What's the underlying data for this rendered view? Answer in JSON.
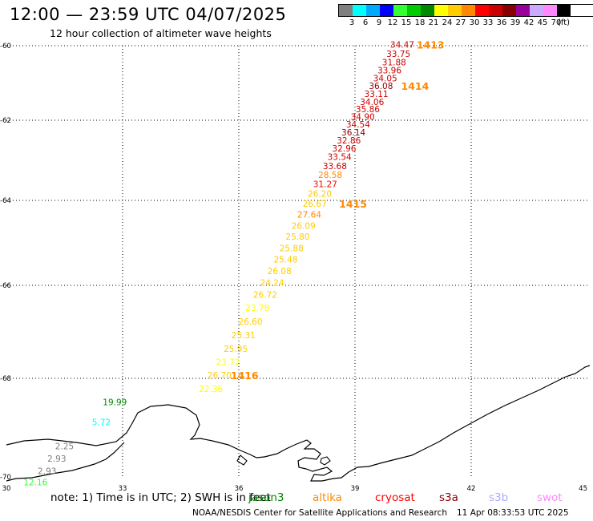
{
  "header": {
    "title": "12:00 — 23:59 UTC 04/07/2025",
    "subtitle": "12 hour collection of altimeter wave heights"
  },
  "legend": {
    "unit": "(ft)",
    "bins": [
      {
        "label": "3",
        "color": "#808080"
      },
      {
        "label": "6",
        "color": "#00ffff"
      },
      {
        "label": "9",
        "color": "#00aaff"
      },
      {
        "label": "12",
        "color": "#0000ff"
      },
      {
        "label": "15",
        "color": "#33ff33"
      },
      {
        "label": "18",
        "color": "#00cc00"
      },
      {
        "label": "21",
        "color": "#008800"
      },
      {
        "label": "24",
        "color": "#ffff00"
      },
      {
        "label": "27",
        "color": "#ffcc00"
      },
      {
        "label": "30",
        "color": "#ff8800"
      },
      {
        "label": "33",
        "color": "#ff0000"
      },
      {
        "label": "36",
        "color": "#cc0000"
      },
      {
        "label": "39",
        "color": "#880000"
      },
      {
        "label": "42",
        "color": "#990099"
      },
      {
        "label": "45",
        "color": "#ccaaff"
      },
      {
        "label": "70",
        "color": "#ff88ff"
      },
      {
        "label": "",
        "color": "#000000"
      }
    ]
  },
  "axes": {
    "lat_ticks": [
      "-60",
      "-62",
      "-64",
      "-66",
      "-68",
      "-70"
    ],
    "lon_ticks": [
      "30",
      "33",
      "36",
      "39",
      "42",
      "45"
    ]
  },
  "observations": [
    {
      "v": "34.47",
      "lon": 40.22,
      "lat": -59.97,
      "c": "#cc0000"
    },
    {
      "v": "33.75",
      "lon": 40.12,
      "lat": -60.21,
      "c": "#cc0000"
    },
    {
      "v": "31.88",
      "lon": 40.01,
      "lat": -60.44,
      "c": "#cc0000"
    },
    {
      "v": "33.96",
      "lon": 39.89,
      "lat": -60.66,
      "c": "#cc0000"
    },
    {
      "v": "34.05",
      "lon": 39.78,
      "lat": -60.87,
      "c": "#cc0000"
    },
    {
      "v": "36.08",
      "lon": 39.67,
      "lat": -61.08,
      "c": "#880000"
    },
    {
      "v": "33.11",
      "lon": 39.55,
      "lat": -61.29,
      "c": "#cc0000"
    },
    {
      "v": "34.06",
      "lon": 39.44,
      "lat": -61.5,
      "c": "#cc0000"
    },
    {
      "v": "35.86",
      "lon": 39.33,
      "lat": -61.7,
      "c": "#cc0000"
    },
    {
      "v": "34.90",
      "lon": 39.2,
      "lat": -61.9,
      "c": "#cc0000"
    },
    {
      "v": "34.54",
      "lon": 39.08,
      "lat": -62.1,
      "c": "#cc0000"
    },
    {
      "v": "36.14",
      "lon": 38.96,
      "lat": -62.3,
      "c": "#880000"
    },
    {
      "v": "32.86",
      "lon": 38.84,
      "lat": -62.5,
      "c": "#cc0000"
    },
    {
      "v": "32.96",
      "lon": 38.72,
      "lat": -62.7,
      "c": "#cc0000"
    },
    {
      "v": "33.54",
      "lon": 38.6,
      "lat": -62.91,
      "c": "#cc0000"
    },
    {
      "v": "33.68",
      "lon": 38.48,
      "lat": -63.14,
      "c": "#cc0000"
    },
    {
      "v": "28.58",
      "lon": 38.36,
      "lat": -63.36,
      "c": "#ff8800"
    },
    {
      "v": "31.27",
      "lon": 38.23,
      "lat": -63.59,
      "c": "#ff0000"
    },
    {
      "v": "26.20",
      "lon": 38.09,
      "lat": -63.83,
      "c": "#ffcc00"
    },
    {
      "v": "26.67",
      "lon": 37.96,
      "lat": -64.08,
      "c": "#ffcc00"
    },
    {
      "v": "27.64",
      "lon": 37.82,
      "lat": -64.33,
      "c": "#ff8800"
    },
    {
      "v": "26.09",
      "lon": 37.67,
      "lat": -64.59,
      "c": "#ffcc00"
    },
    {
      "v": "25.80",
      "lon": 37.52,
      "lat": -64.85,
      "c": "#ffcc00"
    },
    {
      "v": "25.88",
      "lon": 37.36,
      "lat": -65.12,
      "c": "#ffcc00"
    },
    {
      "v": "25.48",
      "lon": 37.21,
      "lat": -65.39,
      "c": "#ffcc00"
    },
    {
      "v": "26.08",
      "lon": 37.05,
      "lat": -65.66,
      "c": "#ffcc00"
    },
    {
      "v": "24.24",
      "lon": 36.86,
      "lat": -65.93,
      "c": "#ffcc00"
    },
    {
      "v": "26.72",
      "lon": 36.68,
      "lat": -66.2,
      "c": "#ffcc00"
    },
    {
      "v": "23.78",
      "lon": 36.48,
      "lat": -66.48,
      "c": "#ffff00"
    },
    {
      "v": "26.60",
      "lon": 36.3,
      "lat": -66.78,
      "c": "#ffcc00"
    },
    {
      "v": "25.31",
      "lon": 36.12,
      "lat": -67.07,
      "c": "#ffcc00"
    },
    {
      "v": "25.95",
      "lon": 35.92,
      "lat": -67.36,
      "c": "#ffcc00"
    },
    {
      "v": "23.72",
      "lon": 35.72,
      "lat": -67.65,
      "c": "#ffff00"
    },
    {
      "v": "26.70",
      "lon": 35.5,
      "lat": -67.93,
      "c": "#ffcc00"
    },
    {
      "v": "22.36",
      "lon": 35.28,
      "lat": -68.21,
      "c": "#ffff00"
    },
    {
      "v": "19.99",
      "lon": 32.8,
      "lat": -68.48,
      "c": "#008800"
    },
    {
      "v": "5.72",
      "lon": 32.45,
      "lat": -68.89,
      "c": "#00ffff"
    },
    {
      "v": "2.25",
      "lon": 31.5,
      "lat": -69.37,
      "c": "#808080"
    },
    {
      "v": "2.93",
      "lon": 31.3,
      "lat": -69.63,
      "c": "#808080"
    },
    {
      "v": "2.93",
      "lon": 31.05,
      "lat": -69.88,
      "c": "#808080"
    },
    {
      "v": "12.16",
      "lon": 30.75,
      "lat": -70.11,
      "c": "#33ff33"
    }
  ],
  "passes": [
    {
      "id": "1413",
      "lon": 40.95,
      "lat": -59.97,
      "c": "#ff8800"
    },
    {
      "id": "1414",
      "lon": 40.55,
      "lat": -61.08,
      "c": "#ff8800"
    },
    {
      "id": "1415",
      "lon": 38.95,
      "lat": -64.08,
      "c": "#ff8800"
    },
    {
      "id": "1416",
      "lon": 36.15,
      "lat": -67.93,
      "c": "#ff8800"
    }
  ],
  "footer": {
    "note": "note:  1) Time is in UTC; 2) SWH is in feet",
    "missions": [
      {
        "name": "jason3",
        "color": "#008800"
      },
      {
        "name": "altika",
        "color": "#ff8800"
      },
      {
        "name": "cryosat",
        "color": "#ff0000"
      },
      {
        "name": "s3a",
        "color": "#880000"
      },
      {
        "name": "s3b",
        "color": "#aaaaff"
      },
      {
        "name": "swot",
        "color": "#ff88ff"
      }
    ],
    "credit": "NOAA/NESDIS Center for Satellite Applications and Research",
    "timestamp": "11 Apr 08:33:53 UTC 2025"
  }
}
